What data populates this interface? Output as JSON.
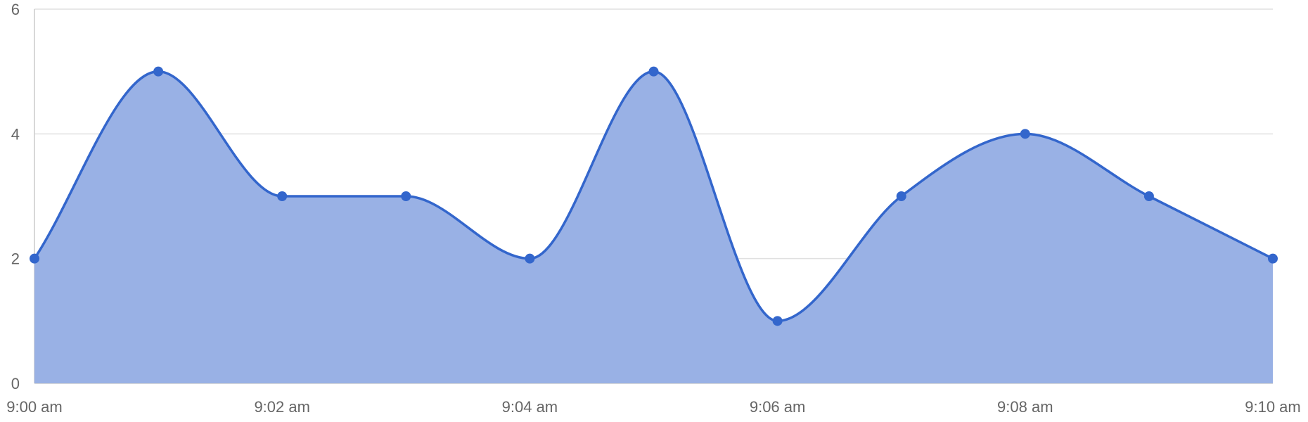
{
  "chart_data": {
    "type": "area",
    "title": "",
    "xlabel": "",
    "ylabel": "",
    "x": [
      "9:00 am",
      "9:01 am",
      "9:02 am",
      "9:03 am",
      "9:04 am",
      "9:05 am",
      "9:06 am",
      "9:07 am",
      "9:08 am",
      "9:09 am",
      "9:10 am"
    ],
    "x_tick_labels": [
      "9:00 am",
      "9:02 am",
      "9:04 am",
      "9:06 am",
      "9:08 am",
      "9:10 am"
    ],
    "y_tick_labels": [
      "0",
      "2",
      "4",
      "6"
    ],
    "series": [
      {
        "values": [
          2,
          5,
          3,
          3,
          2,
          5,
          1,
          3,
          4,
          3,
          2
        ]
      }
    ],
    "ylim": [
      0,
      6
    ],
    "grid": true,
    "legend": "none",
    "colors": {
      "line": "#3366cc",
      "fill": "#99b1e5",
      "grid": "#e0e0e0",
      "axis": "#cccccc",
      "tick_text": "#666666"
    }
  }
}
